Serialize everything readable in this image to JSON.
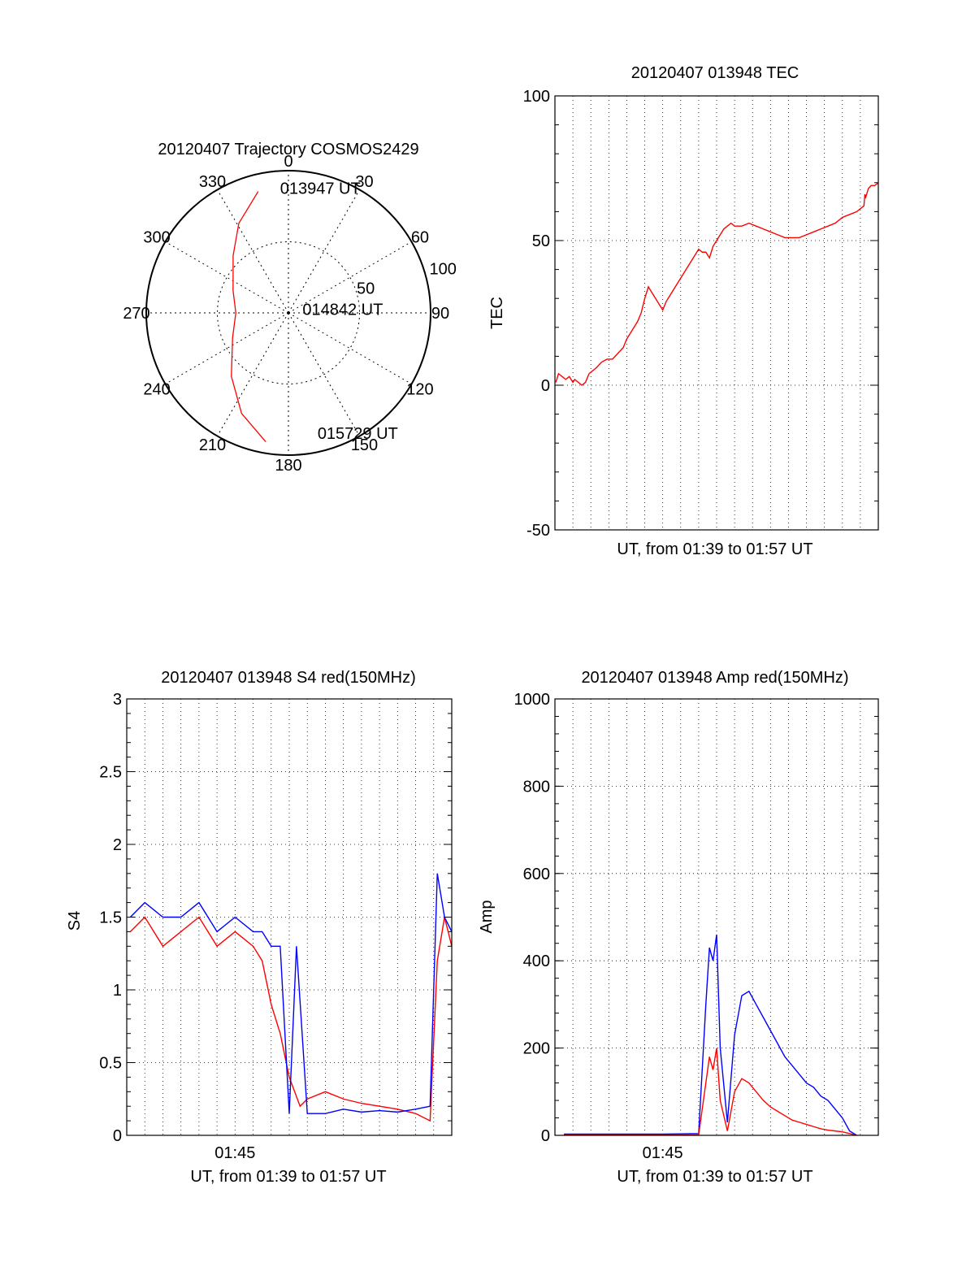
{
  "chart_data": [
    {
      "type": "polar",
      "title": "20120407 Trajectory COSMOS2429",
      "azimuth_ticks": [
        "0",
        "30",
        "60",
        "90",
        "120",
        "150",
        "180",
        "210",
        "240",
        "270",
        "300",
        "330"
      ],
      "radial_ticks": [
        "50",
        "100"
      ],
      "radial_range": [
        0,
        100
      ],
      "grid": true,
      "series": [
        {
          "color": "#ff0000",
          "points": [
            {
              "az": 346,
              "zen": 88
            },
            {
              "az": 331,
              "zen": 72
            },
            {
              "az": 316,
              "zen": 56
            },
            {
              "az": 292,
              "zen": 42
            },
            {
              "az": 270,
              "zen": 37
            },
            {
              "az": 246,
              "zen": 43
            },
            {
              "az": 222,
              "zen": 60
            },
            {
              "az": 205,
              "zen": 78
            },
            {
              "az": 190,
              "zen": 92
            }
          ]
        }
      ],
      "annotations": [
        {
          "text": "013947 UT",
          "az": 356,
          "zen": 84
        },
        {
          "text": "014842 UT",
          "az": 98,
          "zen": 10
        },
        {
          "text": "015729 UT",
          "az": 167,
          "zen": 91
        }
      ]
    },
    {
      "type": "line",
      "title": "20120407 013948 TEC",
      "xlabel": "UT, from 01:39 to 01:57 UT",
      "ylabel": "TEC",
      "ylim": [
        -50,
        100
      ],
      "yticks": [
        "-50",
        "0",
        "50",
        "100"
      ],
      "xlim": [
        0,
        18
      ],
      "grid": true,
      "series": [
        {
          "color": "#ff0000",
          "x": [
            0.05,
            0.2,
            0.4,
            0.6,
            0.8,
            1.0,
            1.1,
            1.3,
            1.5,
            1.7,
            1.9,
            2.1,
            2.3,
            2.6,
            2.9,
            3.2,
            3.5,
            3.8,
            4.0,
            4.2,
            4.4,
            4.6,
            4.8,
            5.0,
            5.2,
            5.4,
            5.6,
            5.8,
            6.0,
            6.2,
            6.4,
            6.6,
            6.8,
            7.0,
            7.2,
            7.4,
            7.6,
            7.8,
            8.0,
            8.2,
            8.4,
            8.6,
            8.8,
            9.0,
            9.2,
            9.4,
            9.6,
            9.8,
            10.0,
            10.4,
            10.8,
            11.2,
            11.6,
            12.0,
            12.4,
            12.8,
            13.2,
            13.6,
            14.0,
            14.4,
            14.8,
            15.2,
            15.6,
            16.0,
            16.4,
            16.8,
            17.2,
            17.25,
            17.3,
            17.45,
            17.6,
            17.8,
            18.0
          ],
          "y": [
            1,
            4,
            3,
            2,
            3,
            1,
            2,
            1,
            0,
            1,
            4,
            5,
            6,
            8,
            9,
            9,
            11,
            13,
            16,
            18,
            20,
            22,
            25,
            30,
            34,
            32,
            30,
            28,
            26,
            29,
            31,
            33,
            35,
            37,
            39,
            41,
            43,
            45,
            47,
            46,
            46,
            44,
            48,
            50,
            52,
            54,
            55,
            56,
            55,
            55,
            56,
            55,
            54,
            53,
            52,
            51,
            51,
            51,
            52,
            53,
            54,
            55,
            56,
            58,
            59,
            60,
            62,
            66,
            65,
            68,
            69,
            69,
            70
          ]
        }
      ]
    },
    {
      "type": "line",
      "title": "20120407 013948 S4 red(150MHz)",
      "xlabel": "UT, from 01:39 to 01:57 UT",
      "ylabel": "S4",
      "ylim": [
        0,
        3
      ],
      "yticks": [
        "0",
        "0.5",
        "1",
        "1.5",
        "2",
        "2.5",
        "3"
      ],
      "xtick_label": "01:45",
      "xlim": [
        0,
        18
      ],
      "grid": true,
      "series": [
        {
          "color": "#ff0000",
          "x": [
            0.2,
            1.0,
            2.0,
            3.0,
            4.0,
            5.0,
            6.0,
            7.0,
            7.5,
            8.0,
            8.5,
            9.0,
            9.6,
            10.0,
            11.0,
            12.0,
            13.0,
            14.0,
            15.0,
            16.0,
            16.8,
            17.2,
            17.6,
            18.0
          ],
          "y": [
            1.4,
            1.5,
            1.3,
            1.4,
            1.5,
            1.3,
            1.4,
            1.3,
            1.2,
            0.9,
            0.7,
            0.4,
            0.2,
            0.25,
            0.3,
            0.25,
            0.22,
            0.2,
            0.18,
            0.15,
            0.1,
            1.2,
            1.5,
            1.3
          ]
        },
        {
          "color": "#0000ff",
          "x": [
            0.2,
            1.0,
            2.0,
            3.0,
            4.0,
            5.0,
            6.0,
            7.0,
            7.5,
            8.0,
            8.5,
            9.0,
            9.4,
            10.0,
            11.0,
            12.0,
            13.0,
            14.0,
            15.0,
            16.0,
            16.8,
            17.2,
            17.6,
            18.0
          ],
          "y": [
            1.5,
            1.6,
            1.5,
            1.5,
            1.6,
            1.4,
            1.5,
            1.4,
            1.4,
            1.3,
            1.3,
            0.15,
            1.3,
            0.15,
            0.15,
            0.18,
            0.16,
            0.17,
            0.16,
            0.18,
            0.2,
            1.8,
            1.5,
            1.4
          ]
        }
      ]
    },
    {
      "type": "line",
      "title": "20120407 013948 Amp red(150MHz)",
      "xlabel": "UT, from 01:39 to 01:57 UT",
      "ylabel": "Amp",
      "ylim": [
        0,
        1000
      ],
      "yticks": [
        "0",
        "200",
        "400",
        "600",
        "800",
        "1000"
      ],
      "xtick_label": "01:45",
      "xlim": [
        0,
        18
      ],
      "grid": true,
      "series": [
        {
          "color": "#0000ff",
          "x": [
            0.5,
            2.0,
            4.0,
            6.0,
            8.0,
            8.4,
            8.6,
            8.8,
            9.0,
            9.2,
            9.6,
            10.0,
            10.4,
            10.8,
            11.2,
            11.6,
            12.0,
            12.4,
            12.8,
            13.2,
            13.6,
            14.0,
            14.4,
            14.8,
            15.2,
            15.6,
            16.0,
            16.4,
            16.8
          ],
          "y": [
            3,
            3,
            3,
            3,
            4,
            300,
            430,
            400,
            460,
            200,
            30,
            230,
            320,
            330,
            300,
            270,
            240,
            210,
            180,
            160,
            140,
            120,
            110,
            90,
            80,
            60,
            40,
            10,
            0
          ]
        },
        {
          "color": "#ff0000",
          "x": [
            0.5,
            2.0,
            4.0,
            6.0,
            8.0,
            8.4,
            8.6,
            8.8,
            9.0,
            9.2,
            9.6,
            10.0,
            10.4,
            10.8,
            11.2,
            11.6,
            12.0,
            12.4,
            12.8,
            13.2,
            13.6,
            14.0,
            14.4,
            14.8,
            15.2,
            15.6,
            16.0,
            16.4,
            16.8
          ],
          "y": [
            1,
            1,
            1,
            1,
            1,
            120,
            180,
            150,
            200,
            80,
            10,
            100,
            130,
            120,
            100,
            80,
            65,
            55,
            45,
            35,
            30,
            25,
            20,
            15,
            12,
            10,
            8,
            4,
            0
          ]
        }
      ]
    }
  ]
}
